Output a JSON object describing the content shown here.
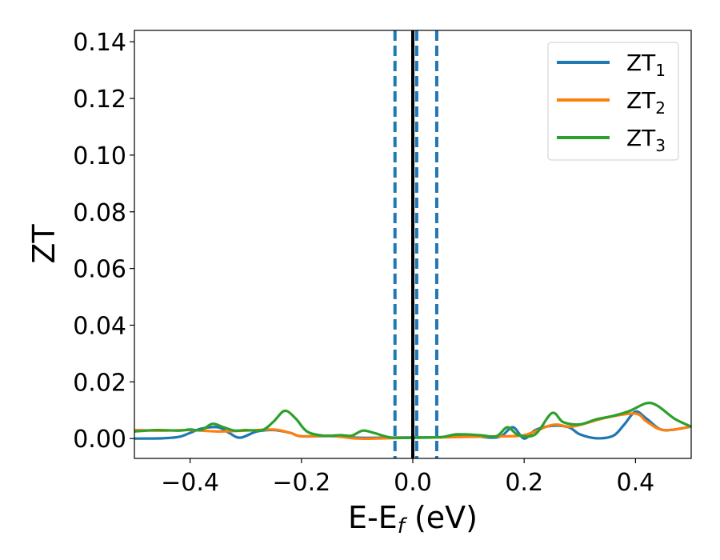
{
  "chart_data": {
    "type": "line",
    "title": "",
    "xlabel_main": "E-E",
    "xlabel_sub": "f",
    "xlabel_unit": " (eV)",
    "ylabel": "ZT",
    "xlim": [
      -0.5,
      0.5
    ],
    "ylim": [
      -0.007,
      0.144
    ],
    "xticks": [
      -0.4,
      -0.2,
      0.0,
      0.2,
      0.4
    ],
    "xtick_labels": [
      "−0.4",
      "−0.2",
      "0.0",
      "0.2",
      "0.4"
    ],
    "yticks": [
      0.0,
      0.02,
      0.04,
      0.06,
      0.08,
      0.1,
      0.12,
      0.14
    ],
    "ytick_labels": [
      "0.00",
      "0.02",
      "0.04",
      "0.06",
      "0.08",
      "0.10",
      "0.12",
      "0.14"
    ],
    "grid": false,
    "legend_position": "top-right",
    "vlines": [
      {
        "x": 0.0,
        "style": "solid",
        "color": "#000000"
      },
      {
        "x": -0.032,
        "style": "dashed",
        "color": "#1f77b4"
      },
      {
        "x": 0.007,
        "style": "dashed",
        "color": "#1f77b4"
      },
      {
        "x": 0.043,
        "style": "dashed",
        "color": "#1f77b4"
      }
    ],
    "series": [
      {
        "name": "ZT",
        "sub": "1",
        "color": "#1f77b4",
        "x": [
          -0.5,
          -0.45,
          -0.42,
          -0.4,
          -0.38,
          -0.35,
          -0.33,
          -0.31,
          -0.28,
          -0.25,
          -0.22,
          -0.2,
          -0.15,
          -0.1,
          -0.05,
          0.0,
          0.05,
          0.1,
          0.14,
          0.16,
          0.18,
          0.2,
          0.22,
          0.25,
          0.28,
          0.3,
          0.33,
          0.36,
          0.38,
          0.4,
          0.42,
          0.45,
          0.5
        ],
        "y": [
          0.0,
          0.0001,
          0.0006,
          0.002,
          0.0035,
          0.004,
          0.002,
          0.0003,
          0.0025,
          0.003,
          0.002,
          0.0008,
          0.0009,
          0.0003,
          0.0003,
          0.0004,
          0.0005,
          0.001,
          0.0003,
          0.001,
          0.004,
          0.0,
          0.003,
          0.0045,
          0.004,
          0.0015,
          0.0001,
          0.001,
          0.005,
          0.0095,
          0.007,
          0.003,
          0.0042
        ]
      },
      {
        "name": "ZT",
        "sub": "2",
        "color": "#ff7f0e",
        "x": [
          -0.5,
          -0.45,
          -0.4,
          -0.35,
          -0.3,
          -0.25,
          -0.22,
          -0.2,
          -0.15,
          -0.1,
          -0.05,
          0.0,
          0.05,
          0.1,
          0.15,
          0.2,
          0.25,
          0.28,
          0.3,
          0.35,
          0.4,
          0.42,
          0.45,
          0.5
        ],
        "y": [
          0.003,
          0.0028,
          0.003,
          0.0025,
          0.0028,
          0.0032,
          0.002,
          0.0008,
          0.001,
          0.0,
          0.0001,
          0.0003,
          0.0004,
          0.0006,
          0.0008,
          0.0012,
          0.0048,
          0.0042,
          0.0048,
          0.0075,
          0.0088,
          0.006,
          0.003,
          0.0042
        ]
      },
      {
        "name": "ZT",
        "sub": "3",
        "color": "#2ca02c",
        "x": [
          -0.5,
          -0.46,
          -0.42,
          -0.4,
          -0.38,
          -0.36,
          -0.34,
          -0.32,
          -0.3,
          -0.27,
          -0.25,
          -0.23,
          -0.21,
          -0.19,
          -0.16,
          -0.13,
          -0.11,
          -0.09,
          -0.07,
          -0.04,
          0.0,
          0.05,
          0.08,
          0.12,
          0.15,
          0.17,
          0.19,
          0.22,
          0.25,
          0.27,
          0.3,
          0.33,
          0.36,
          0.39,
          0.42,
          0.44,
          0.47,
          0.5
        ],
        "y": [
          0.0025,
          0.003,
          0.0028,
          0.0032,
          0.003,
          0.0052,
          0.004,
          0.0028,
          0.003,
          0.003,
          0.006,
          0.0098,
          0.007,
          0.0025,
          0.001,
          0.0012,
          0.001,
          0.0028,
          0.002,
          0.0004,
          0.0003,
          0.0005,
          0.0015,
          0.0012,
          0.0008,
          0.004,
          0.0012,
          0.0015,
          0.009,
          0.0058,
          0.005,
          0.0068,
          0.008,
          0.0098,
          0.0125,
          0.0115,
          0.007,
          0.0042
        ]
      }
    ]
  }
}
